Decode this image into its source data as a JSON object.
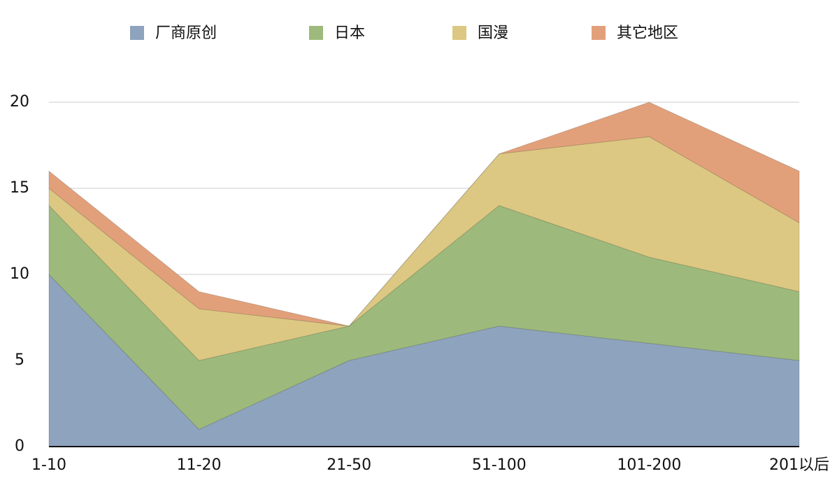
{
  "chart_data": {
    "type": "stacked_area",
    "categories": [
      "1-10",
      "11-20",
      "21-50",
      "51-100",
      "101-200",
      "201以后"
    ],
    "series": [
      {
        "name": "厂商原创",
        "color": "#8ea3bd",
        "values": [
          10,
          1,
          5,
          7,
          6,
          5
        ]
      },
      {
        "name": "日本",
        "color": "#9dba7c",
        "values": [
          4,
          4,
          2,
          7,
          5,
          4
        ]
      },
      {
        "name": "国漫",
        "color": "#dcc882",
        "values": [
          1,
          3,
          0,
          3,
          7,
          4
        ]
      },
      {
        "name": "其它地区",
        "color": "#e2a07a",
        "values": [
          1,
          1,
          0,
          0,
          2,
          3
        ]
      }
    ],
    "ylim": [
      0,
      20
    ],
    "yticks": [
      0,
      5,
      10,
      15,
      20
    ],
    "grid": true
  }
}
